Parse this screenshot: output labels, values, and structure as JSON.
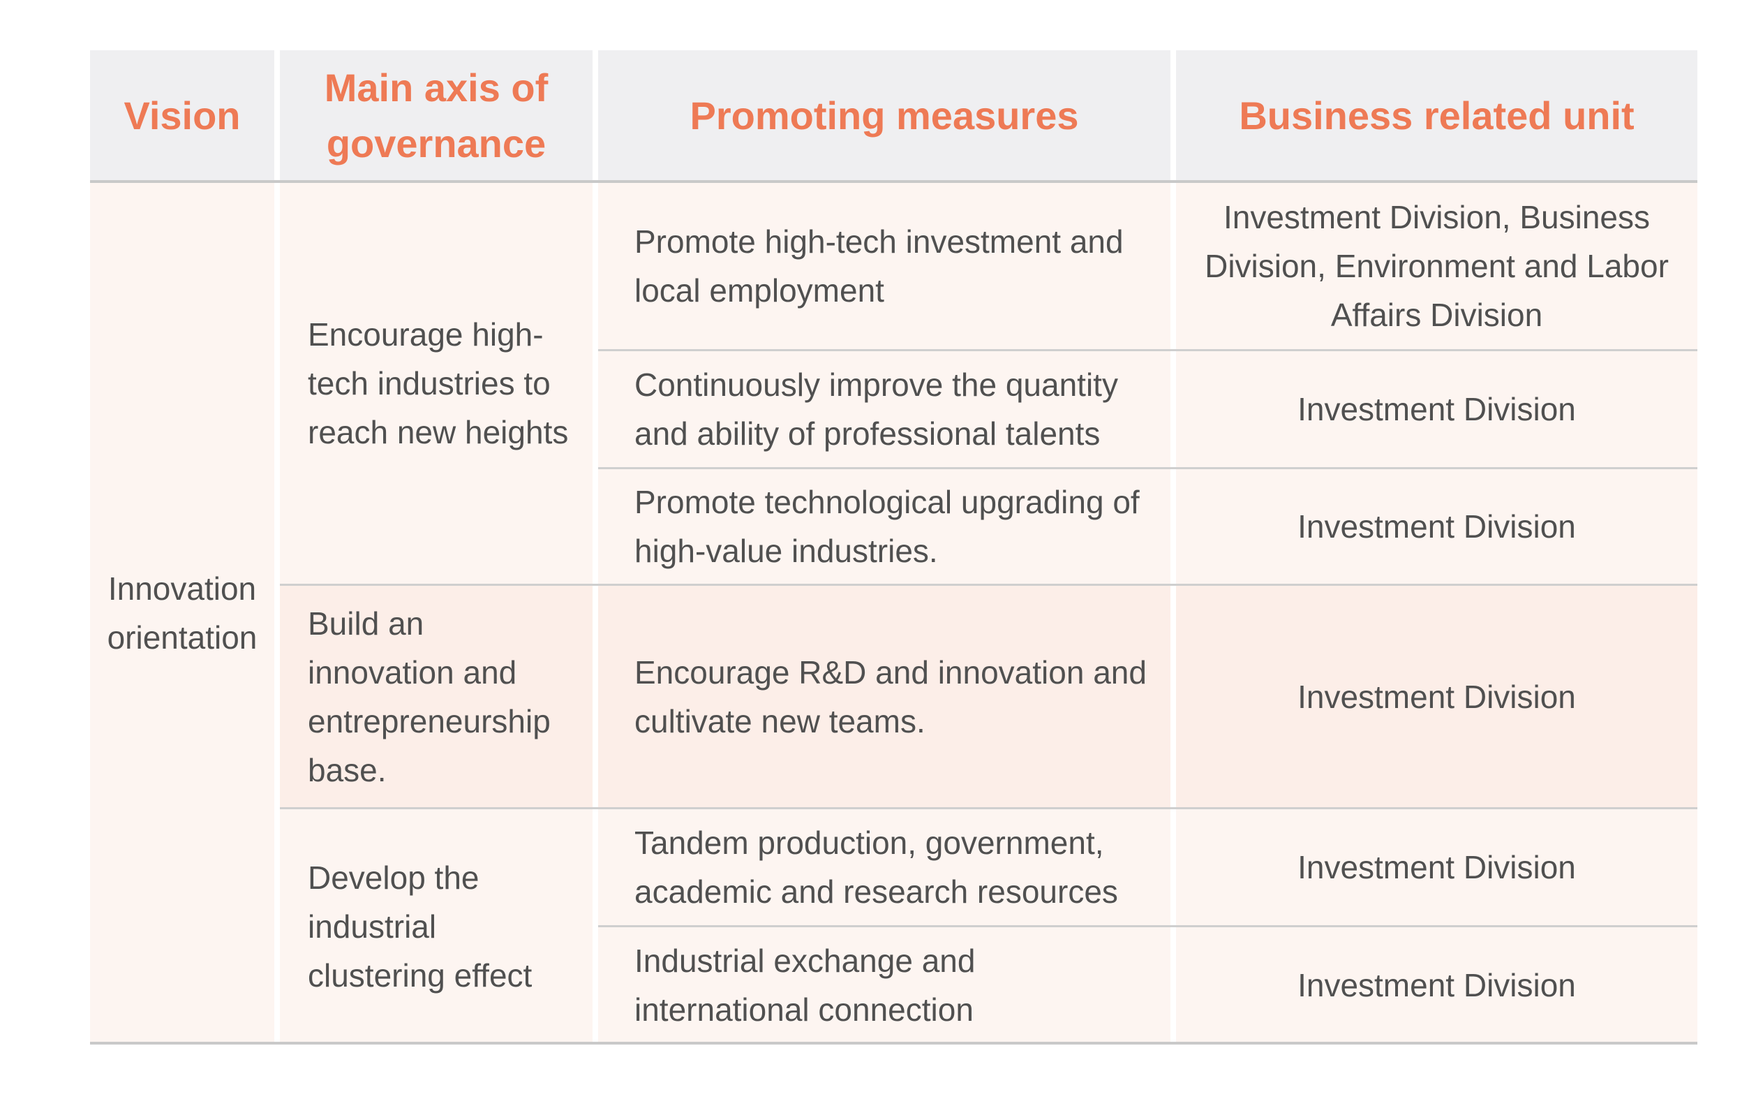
{
  "headers": {
    "vision": "Vision",
    "axis": "Main axis of governance",
    "measures": "Promoting measures",
    "unit": "Business related unit"
  },
  "vision": "Innovation orientation",
  "axes": [
    "Encourage high-tech industries to reach new heights",
    "Build an innovation and entrepreneurship base.",
    "Develop the industrial clustering effect"
  ],
  "rows": [
    {
      "measure": "Promote high-tech investment and local employment",
      "unit": "Investment Division, Business Division, Environment and Labor Affairs Division"
    },
    {
      "measure": "Continuously improve the quantity and ability of professional talents",
      "unit": "Investment Division"
    },
    {
      "measure": "Promote technological upgrading of high-value industries.",
      "unit": "Investment Division"
    },
    {
      "measure": "Encourage R&D and innovation and cultivate new teams.",
      "unit": "Investment Division"
    },
    {
      "measure": "Tandem production, government, academic and research resources",
      "unit": "Investment Division"
    },
    {
      "measure": "Industrial exchange and international connection",
      "unit": "Investment Division"
    }
  ],
  "colors": {
    "header_bg": "#efeff1",
    "header_text": "#ee7a55",
    "body_bg": "#fdf5f1",
    "highlight_bg": "#fceee8",
    "body_text": "#505050",
    "rule": "#cfcfcf"
  }
}
